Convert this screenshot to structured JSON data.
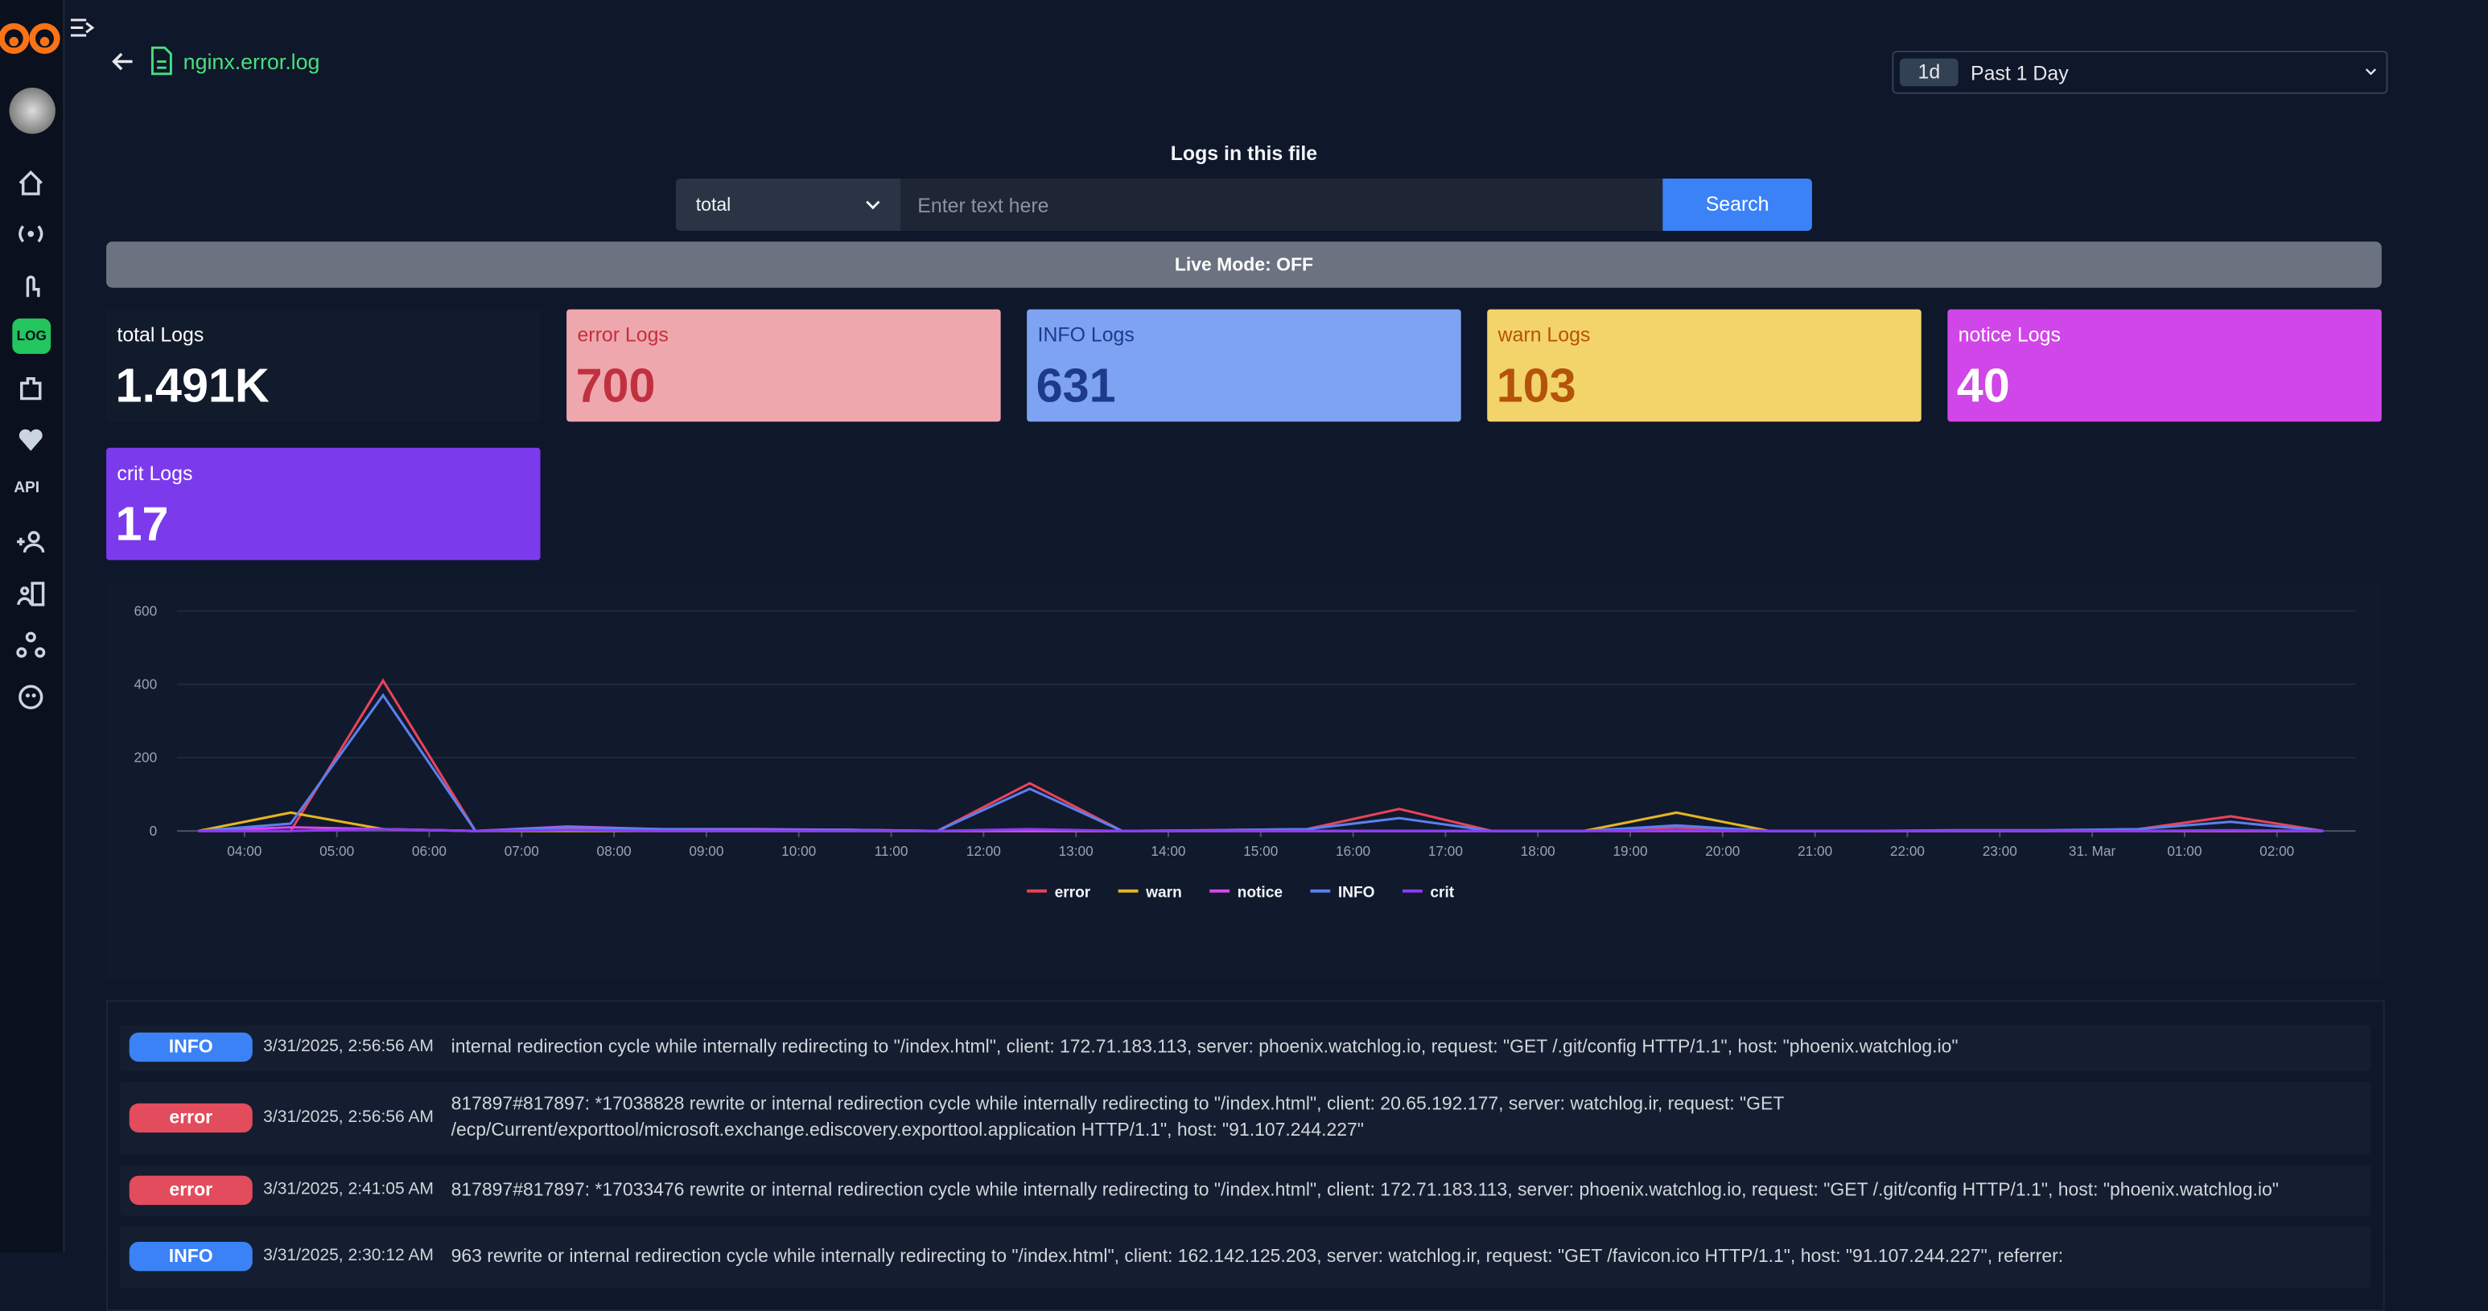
{
  "header": {
    "file": "nginx.error.log",
    "range_badge": "1d",
    "range": "Past 1 Day"
  },
  "search": {
    "title": "Logs in this file",
    "select": "total",
    "placeholder": "Enter text here",
    "button": "Search"
  },
  "live_mode": "Live Mode: OFF",
  "stats": [
    {
      "label": "total Logs",
      "value": "1.491K"
    },
    {
      "label": "error Logs",
      "value": "700"
    },
    {
      "label": "INFO Logs",
      "value": "631"
    },
    {
      "label": "warn Logs",
      "value": "103"
    },
    {
      "label": "notice Logs",
      "value": "40"
    },
    {
      "label": "crit Logs",
      "value": "17"
    }
  ],
  "chart_data": {
    "type": "line",
    "x": [
      3.5,
      4.5,
      5.5,
      6.5,
      7.5,
      8.5,
      9.5,
      10.5,
      11.5,
      12.5,
      13.5,
      14.5,
      15.5,
      16.5,
      17.5,
      18.5,
      19.5,
      20.5,
      21.5,
      22.5,
      23.5,
      24.5,
      25.5,
      26.5
    ],
    "xlim": [
      3.27,
      26.85
    ],
    "xticks": [
      {
        "value": 4,
        "label": "04:00"
      },
      {
        "value": 5,
        "label": "05:00"
      },
      {
        "value": 6,
        "label": "06:00"
      },
      {
        "value": 7,
        "label": "07:00"
      },
      {
        "value": 8,
        "label": "08:00"
      },
      {
        "value": 9,
        "label": "09:00"
      },
      {
        "value": 10,
        "label": "10:00"
      },
      {
        "value": 11,
        "label": "11:00"
      },
      {
        "value": 12,
        "label": "12:00"
      },
      {
        "value": 13,
        "label": "13:00"
      },
      {
        "value": 14,
        "label": "14:00"
      },
      {
        "value": 15,
        "label": "15:00"
      },
      {
        "value": 16,
        "label": "16:00"
      },
      {
        "value": 17,
        "label": "17:00"
      },
      {
        "value": 18,
        "label": "18:00"
      },
      {
        "value": 19,
        "label": "19:00"
      },
      {
        "value": 20,
        "label": "20:00"
      },
      {
        "value": 21,
        "label": "21:00"
      },
      {
        "value": 22,
        "label": "22:00"
      },
      {
        "value": 23,
        "label": "23:00"
      },
      {
        "value": 24,
        "label": "31. Mar"
      },
      {
        "value": 25,
        "label": "01:00"
      },
      {
        "value": 26,
        "label": "02:00"
      }
    ],
    "ylim": [
      0,
      600
    ],
    "yticks": [
      0,
      200,
      400,
      600
    ],
    "grid": true,
    "series": [
      {
        "name": "error",
        "color": "#e8435a",
        "values": [
          0,
          0,
          410,
          0,
          5,
          3,
          3,
          3,
          0,
          130,
          0,
          2,
          5,
          60,
          0,
          0,
          10,
          0,
          0,
          0,
          0,
          5,
          40,
          0
        ]
      },
      {
        "name": "warn",
        "color": "#e6b422",
        "values": [
          0,
          50,
          5,
          0,
          0,
          0,
          0,
          0,
          0,
          0,
          0,
          0,
          0,
          0,
          0,
          0,
          50,
          0,
          0,
          0,
          0,
          0,
          0,
          0
        ]
      },
      {
        "name": "notice",
        "color": "#d946ef",
        "values": [
          0,
          10,
          5,
          0,
          12,
          5,
          5,
          3,
          0,
          0,
          0,
          0,
          0,
          0,
          0,
          0,
          0,
          0,
          0,
          0,
          0,
          0,
          0,
          0
        ]
      },
      {
        "name": "INFO",
        "color": "#5b7ff0",
        "values": [
          0,
          20,
          370,
          0,
          10,
          5,
          3,
          3,
          0,
          115,
          0,
          2,
          5,
          35,
          0,
          0,
          15,
          0,
          0,
          2,
          2,
          5,
          25,
          0
        ]
      },
      {
        "name": "crit",
        "color": "#8b3cf0",
        "values": [
          0,
          0,
          5,
          0,
          2,
          0,
          0,
          0,
          0,
          5,
          0,
          0,
          0,
          0,
          0,
          0,
          3,
          0,
          0,
          0,
          0,
          0,
          2,
          0
        ]
      }
    ]
  },
  "logs": [
    {
      "level": "INFO",
      "time": "3/31/2025, 2:56:56 AM",
      "message": "internal redirection cycle while internally redirecting to \"/index.html\", client: 172.71.183.113, server: phoenix.watchlog.io, request: \"GET /.git/config HTTP/1.1\", host: \"phoenix.watchlog.io\""
    },
    {
      "level": "error",
      "time": "3/31/2025, 2:56:56 AM",
      "message": "817897#817897: *17038828 rewrite or internal redirection cycle while internally redirecting to \"/index.html\", client: 20.65.192.177, server: watchlog.ir, request: \"GET /ecp/Current/exporttool/microsoft.exchange.ediscovery.exporttool.application HTTP/1.1\", host: \"91.107.244.227\""
    },
    {
      "level": "error",
      "time": "3/31/2025, 2:41:05 AM",
      "message": "817897#817897: *17033476 rewrite or internal redirection cycle while internally redirecting to \"/index.html\", client: 172.71.183.113, server: phoenix.watchlog.io, request: \"GET /.git/config HTTP/1.1\", host: \"phoenix.watchlog.io\""
    },
    {
      "level": "INFO",
      "time": "3/31/2025, 2:30:12 AM",
      "message": "963 rewrite or internal redirection cycle while internally redirecting to \"/index.html\", client: 162.142.125.203, server: watchlog.ir, request: \"GET /favicon.ico HTTP/1.1\", host: \"91.107.244.227\", referrer:"
    }
  ]
}
